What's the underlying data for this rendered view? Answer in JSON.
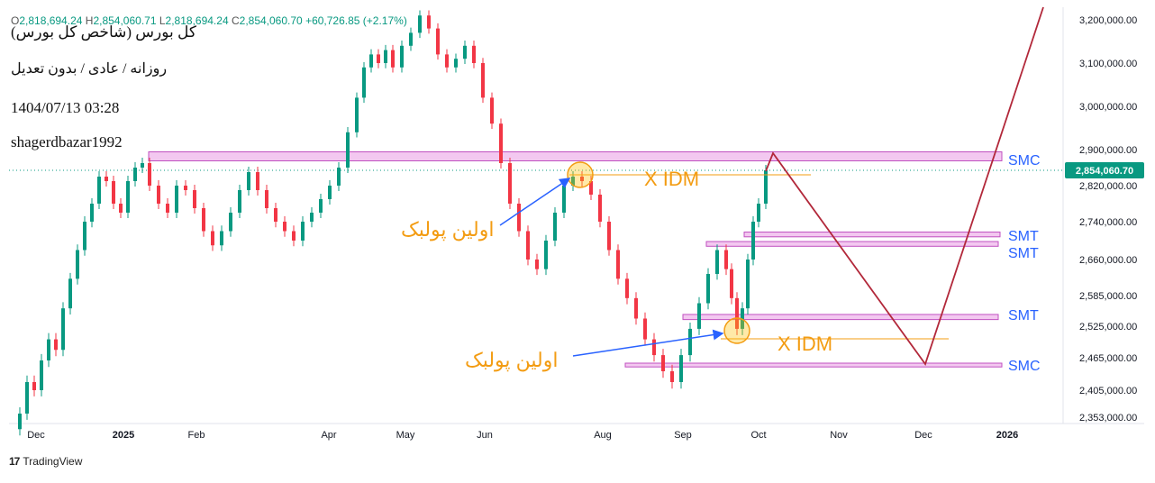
{
  "header": {
    "title": "کل بورس (شاخص کل بورس)",
    "timeframe": "روزانه / عادی / بدون تعدیل",
    "datetime": "1404/07/13 03:28",
    "author": "shagerdbazar1992",
    "ohlc": {
      "o_label": "O",
      "o": "2,818,694.24",
      "h_label": "H",
      "h": "2,854,060.71",
      "l_label": "L",
      "l": "2,818,694.24",
      "c_label": "C",
      "c": "2,854,060.70",
      "change": "+60,726.85 (+2.17%)"
    }
  },
  "footer": {
    "logo": "17",
    "brand": "TradingView"
  },
  "colors": {
    "up": "#089981",
    "down": "#f23645",
    "zone_fill": "#f3c8f0",
    "zone_stroke": "#c050c0",
    "label_blue": "#2962ff",
    "annot_orange": "#f39c12",
    "projection": "#b2283a",
    "arrow_blue": "#2962ff",
    "price_tag": "#089981"
  },
  "chart_data": {
    "type": "candlestick",
    "y_axis_ticks": [
      "3,200,000.00",
      "3,100,000.00",
      "3,000,000.00",
      "2,900,000.00",
      "2,820,000.00",
      "2,740,000.00",
      "2,660,000.00",
      "2,585,000.00",
      "2,525,000.00",
      "2,465,000.00",
      "2,405,000.00",
      "2,353,000.00"
    ],
    "y_tick_values": [
      3200000,
      3100000,
      3000000,
      2900000,
      2820000,
      2740000,
      2660000,
      2585000,
      2525000,
      2465000,
      2405000,
      2353000
    ],
    "x_axis_ticks": [
      "Dec",
      "2025",
      "Feb",
      "Apr",
      "May",
      "Jun",
      "Aug",
      "Sep",
      "Oct",
      "Nov",
      "Dec",
      "2026"
    ],
    "bold_x_ticks": [
      "2025",
      "2026"
    ],
    "last_price": "2,854,060.70",
    "last_price_value": 2854060.7,
    "closes": [
      2360000,
      2420000,
      2405000,
      2460000,
      2500000,
      2480000,
      2560000,
      2620000,
      2680000,
      2740000,
      2780000,
      2840000,
      2830000,
      2780000,
      2760000,
      2830000,
      2860000,
      2870000,
      2820000,
      2780000,
      2760000,
      2820000,
      2810000,
      2770000,
      2720000,
      2690000,
      2720000,
      2760000,
      2810000,
      2850000,
      2810000,
      2770000,
      2740000,
      2720000,
      2700000,
      2740000,
      2760000,
      2790000,
      2820000,
      2860000,
      2940000,
      3020000,
      3090000,
      3120000,
      3100000,
      3130000,
      3090000,
      3140000,
      3170000,
      3210000,
      3180000,
      3120000,
      3090000,
      3110000,
      3140000,
      3100000,
      3020000,
      2960000,
      2870000,
      2780000,
      2720000,
      2660000,
      2640000,
      2700000,
      2760000,
      2820000,
      2840000,
      2830000,
      2800000,
      2740000,
      2680000,
      2620000,
      2580000,
      2540000,
      2500000,
      2470000,
      2440000,
      2420000,
      2470000,
      2520000,
      2570000,
      2630000,
      2680000,
      2640000,
      2580000,
      2520000,
      2560000,
      2660000,
      2740000,
      2780000,
      2854060
    ],
    "annotations": {
      "zone_labels": [
        "SMC",
        "SMT",
        "SMT",
        "SMT",
        "SMC"
      ],
      "idm_labels": [
        "X IDM",
        "X IDM"
      ],
      "pullback_labels": [
        "اولین پولبک",
        "اولین پولبک"
      ]
    }
  }
}
